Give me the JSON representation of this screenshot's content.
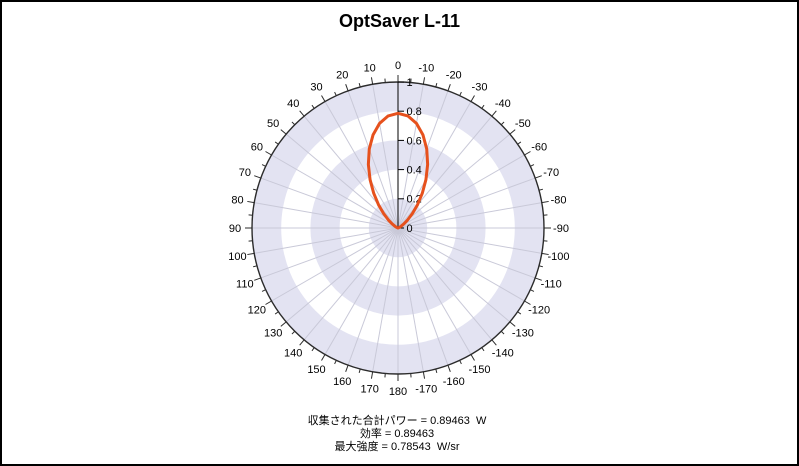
{
  "page": {
    "title": "OptSaver L-11"
  },
  "colors": {
    "background": "#ffffff",
    "band_fill": "#e3e3f2",
    "band_alt_fill": "#ffffff",
    "spoke": "#c9c9d8",
    "outline": "#2b2b2b",
    "axis": "#000000",
    "curve": "#e6511d",
    "text": "#000000"
  },
  "chart_data": {
    "type": "line",
    "polar": true,
    "title": "OptSaver L-11",
    "angle_unit": "degrees",
    "angle_zero_position": "top",
    "positive_angles_direction": "counterclockwise-left",
    "angle_label_step_deg": 10,
    "angle_minor_tick_step_deg": 5,
    "angle_labels": [
      -170,
      -160,
      -150,
      -140,
      -130,
      -120,
      -110,
      -100,
      -90,
      -80,
      -70,
      -60,
      -50,
      -40,
      -30,
      -20,
      -10,
      0,
      10,
      20,
      30,
      40,
      50,
      60,
      70,
      80,
      90,
      100,
      110,
      120,
      130,
      140,
      150,
      160,
      170,
      180
    ],
    "radial_ticks": [
      "0",
      "0.2",
      "0.4",
      "0.6",
      "0.8",
      "1"
    ],
    "radial_max": 1,
    "grid": "alternating shaded rings every 0.2",
    "series": [
      {
        "color": "#e6511d",
        "angles_deg": [
          -90,
          -85,
          -80,
          -75,
          -70,
          -65,
          -60,
          -55,
          -50,
          -45,
          -40,
          -35,
          -30,
          -25,
          -20,
          -15,
          -10,
          -5,
          0,
          5,
          10,
          15,
          20,
          25,
          30,
          35,
          40,
          45,
          50,
          55,
          60,
          65,
          70,
          75,
          80,
          85,
          90
        ],
        "values": [
          0,
          0,
          0.0001,
          0.0009,
          0.0037,
          0.0106,
          0.0245,
          0.0488,
          0.0862,
          0.1389,
          0.2072,
          0.2897,
          0.3826,
          0.4803,
          0.5755,
          0.6604,
          0.7276,
          0.7706,
          0.78543,
          0.7706,
          0.7276,
          0.6604,
          0.5755,
          0.4803,
          0.3826,
          0.2897,
          0.2072,
          0.1389,
          0.0862,
          0.0488,
          0.0245,
          0.0106,
          0.0037,
          0.0009,
          0.0001,
          0,
          0
        ]
      }
    ],
    "peak": {
      "angle_deg": 0,
      "value": 0.78543,
      "unit": "W/sr"
    }
  },
  "stats": {
    "lines": [
      {
        "label": "収集された合計パワー",
        "value": "0.89463",
        "unit": "W",
        "text": "収集された合計パワー = 0.89463  W"
      },
      {
        "label": "効率",
        "value": "0.89463",
        "unit": "",
        "text": "効率 = 0.89463"
      },
      {
        "label": "最大強度",
        "value": "0.78543",
        "unit": "W/sr",
        "text": "最大強度 = 0.78543  W/sr"
      }
    ]
  }
}
